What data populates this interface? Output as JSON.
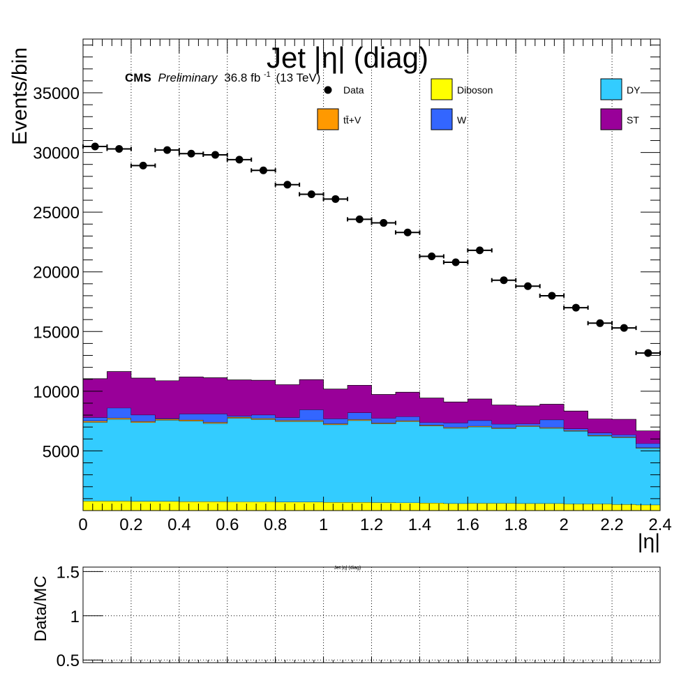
{
  "chart_data": [
    {
      "type": "bar",
      "stacked": true,
      "title": "Jet |η| (diag)",
      "ylabel": "Events/bin",
      "xlabel": "|η|",
      "xlim": [
        0,
        2.4
      ],
      "ylim": [
        0,
        39500
      ],
      "log_scale": false,
      "grid": "vertical dotted lines at major x ticks",
      "legend_placement": "top, three columns",
      "x_tick_labels": [
        "0",
        "0.2",
        "0.4",
        "0.6",
        "0.8",
        "1",
        "1.2",
        "1.4",
        "1.6",
        "1.8",
        "2",
        "2.2",
        "2.4"
      ],
      "y_tick_labels": [
        "5000",
        "10000",
        "15000",
        "20000",
        "25000",
        "30000",
        "35000"
      ],
      "cms_label": "CMS",
      "preliminary_label": "Preliminary",
      "lumi_value": "36.8 fb",
      "lumi_exponent": "-1",
      "energy_label": "(13 TeV)",
      "bin_edges": [
        0,
        0.1,
        0.2,
        0.3,
        0.4,
        0.5,
        0.6,
        0.7,
        0.8,
        0.9,
        1.0,
        1.1,
        1.2,
        1.3,
        1.4,
        1.5,
        1.6,
        1.7,
        1.8,
        1.9,
        2.0,
        2.1,
        2.2,
        2.3,
        2.4
      ],
      "stack_order": [
        "Diboson",
        "DY",
        "tt̄+V",
        "W",
        "ST"
      ],
      "series": [
        {
          "name": "Diboson",
          "color": "#ffff00",
          "values": [
            800,
            800,
            780,
            780,
            760,
            760,
            740,
            740,
            720,
            720,
            700,
            700,
            680,
            660,
            640,
            600,
            620,
            620,
            600,
            600,
            560,
            560,
            520,
            480
          ]
        },
        {
          "name": "DY",
          "color": "#33ccff",
          "values": [
            6600,
            6850,
            6600,
            6800,
            6750,
            6550,
            7000,
            6900,
            6750,
            6750,
            6500,
            6850,
            6600,
            6800,
            6450,
            6300,
            6400,
            6250,
            6450,
            6300,
            6100,
            5700,
            5600,
            4750
          ]
        },
        {
          "name": "tt̄+V",
          "color": "#ff9900",
          "values": [
            100,
            100,
            90,
            90,
            90,
            90,
            90,
            80,
            80,
            80,
            80,
            80,
            70,
            70,
            70,
            70,
            60,
            60,
            60,
            60,
            50,
            50,
            50,
            40
          ]
        },
        {
          "name": "W",
          "color": "#3366ff",
          "values": [
            300,
            850,
            550,
            50,
            500,
            700,
            100,
            300,
            250,
            900,
            420,
            570,
            380,
            340,
            220,
            380,
            470,
            320,
            160,
            650,
            150,
            200,
            180,
            350
          ]
        },
        {
          "name": "ST",
          "color": "#990099",
          "values": [
            3250,
            3050,
            3080,
            3160,
            3100,
            3030,
            3020,
            2900,
            2750,
            2520,
            2480,
            2300,
            2000,
            2050,
            2050,
            1750,
            1800,
            1600,
            1500,
            1300,
            1480,
            1170,
            1300,
            1060
          ]
        }
      ],
      "data_series": {
        "name": "Data",
        "color": "#000000",
        "x": [
          0.05,
          0.15,
          0.25,
          0.35,
          0.45,
          0.55,
          0.65,
          0.75,
          0.85,
          0.95,
          1.05,
          1.15,
          1.25,
          1.35,
          1.45,
          1.55,
          1.65,
          1.75,
          1.85,
          1.95,
          2.05,
          2.15,
          2.25,
          2.35
        ],
        "y": [
          30500,
          30300,
          28900,
          30200,
          29900,
          29800,
          29400,
          28500,
          27300,
          26500,
          26100,
          24400,
          24100,
          23300,
          21300,
          20800,
          21800,
          19300,
          18800,
          18000,
          17000,
          15700,
          15300,
          13200
        ]
      },
      "legend": [
        {
          "name": "Data",
          "kind": "marker"
        },
        {
          "name": "Diboson",
          "kind": "box",
          "color": "#ffff00"
        },
        {
          "name": "DY",
          "kind": "box",
          "color": "#33ccff"
        },
        {
          "name": "tt̄+V",
          "kind": "box",
          "color": "#ff9900"
        },
        {
          "name": "W",
          "kind": "box",
          "color": "#3366ff"
        },
        {
          "name": "ST",
          "kind": "box",
          "color": "#990099"
        }
      ]
    },
    {
      "type": "scatter",
      "title": "Jet |η| (diag)",
      "ylabel": "Data/MC",
      "xlim": [
        0,
        2.4
      ],
      "ylim": [
        0.47,
        1.55
      ],
      "grid": "dotted grid at major ticks",
      "y_tick_labels": [
        "0.5",
        "1",
        "1.5"
      ],
      "values": []
    }
  ]
}
